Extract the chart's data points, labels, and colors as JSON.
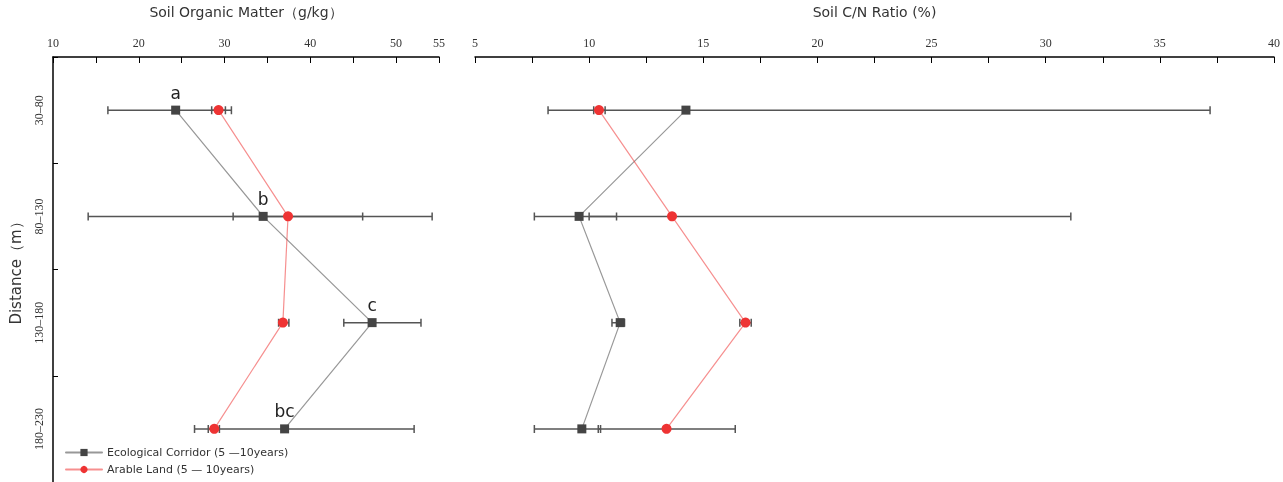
{
  "chart_data": [
    {
      "type": "line",
      "orientation": "horizontal",
      "xlabel": "Soil Organic Matter（g/kg）",
      "ylabel": "Distance（m）",
      "categories": [
        "30–80",
        "80–130",
        "130–180",
        "180–230"
      ],
      "xlim": [
        10,
        55
      ],
      "xticks": [
        10,
        {
          "value": 15,
          "label": null
        },
        20,
        {
          "value": 25,
          "label": null
        },
        30,
        {
          "value": 35,
          "label": null
        },
        40,
        {
          "value": 45,
          "label": null
        },
        50,
        55
      ],
      "series": [
        {
          "name": "Ecological Corridor (5 —10years)",
          "color": "#444444",
          "marker": "square",
          "values": [
            24.3,
            34.5,
            47.2,
            37.0
          ],
          "errors": [
            [
              16.4,
              30.8
            ],
            [
              14.1,
              54.2
            ],
            [
              43.9,
              52.9
            ],
            [
              26.5,
              52.1
            ]
          ]
        },
        {
          "name": "Arable Land (5 — 10years)",
          "color": "#ee3333",
          "marker": "circle",
          "values": [
            29.3,
            37.4,
            36.8,
            28.8
          ],
          "errors": [
            [
              28.5,
              30.1
            ],
            [
              31.0,
              46.1
            ],
            [
              36.3,
              37.5
            ],
            [
              28.1,
              29.4
            ]
          ]
        }
      ],
      "annotations": [
        {
          "text": "a",
          "x": 24.3,
          "y": "30–80"
        },
        {
          "text": "b",
          "x": 34.5,
          "y": "80–130"
        },
        {
          "text": "c",
          "x": 47.2,
          "y": "130–180"
        },
        {
          "text": "bc",
          "x": 37.0,
          "y": "180–230"
        }
      ],
      "legend": "bottom left",
      "grid": false,
      "line_style": "solid"
    },
    {
      "type": "line",
      "orientation": "horizontal",
      "xlabel": "Soil C/N Ratio (%)",
      "categories": [
        null,
        null,
        null,
        null
      ],
      "xlim": [
        5,
        40
      ],
      "xticks": [
        5,
        {
          "value": 7.5,
          "label": null
        },
        10,
        {
          "value": 12.5,
          "label": null
        },
        15,
        {
          "value": 17.5,
          "label": null
        },
        20,
        {
          "value": 22.5,
          "label": null
        },
        25,
        {
          "value": 27.5,
          "label": null
        },
        30,
        {
          "value": 32.5,
          "label": null
        },
        35,
        {
          "value": 37.5,
          "label": null
        },
        40
      ],
      "series": [
        {
          "color": "#444444",
          "marker": "square",
          "values": [
            14.24,
            9.56,
            11.36,
            9.68
          ],
          "errors": [
            [
              8.2,
              37.2
            ],
            [
              7.6,
              11.2
            ],
            [
              11.0,
              11.55
            ],
            [
              7.6,
              10.5
            ]
          ]
        },
        {
          "color": "#ee3333",
          "marker": "circle",
          "values": [
            10.43,
            13.63,
            16.85,
            13.39
          ],
          "errors": [
            [
              10.2,
              10.7
            ],
            [
              10.0,
              31.1
            ],
            [
              16.6,
              17.1
            ],
            [
              10.4,
              16.4
            ]
          ]
        }
      ],
      "tick_labels": "x",
      "legend": false,
      "grid": false,
      "line_style": "solid"
    }
  ]
}
